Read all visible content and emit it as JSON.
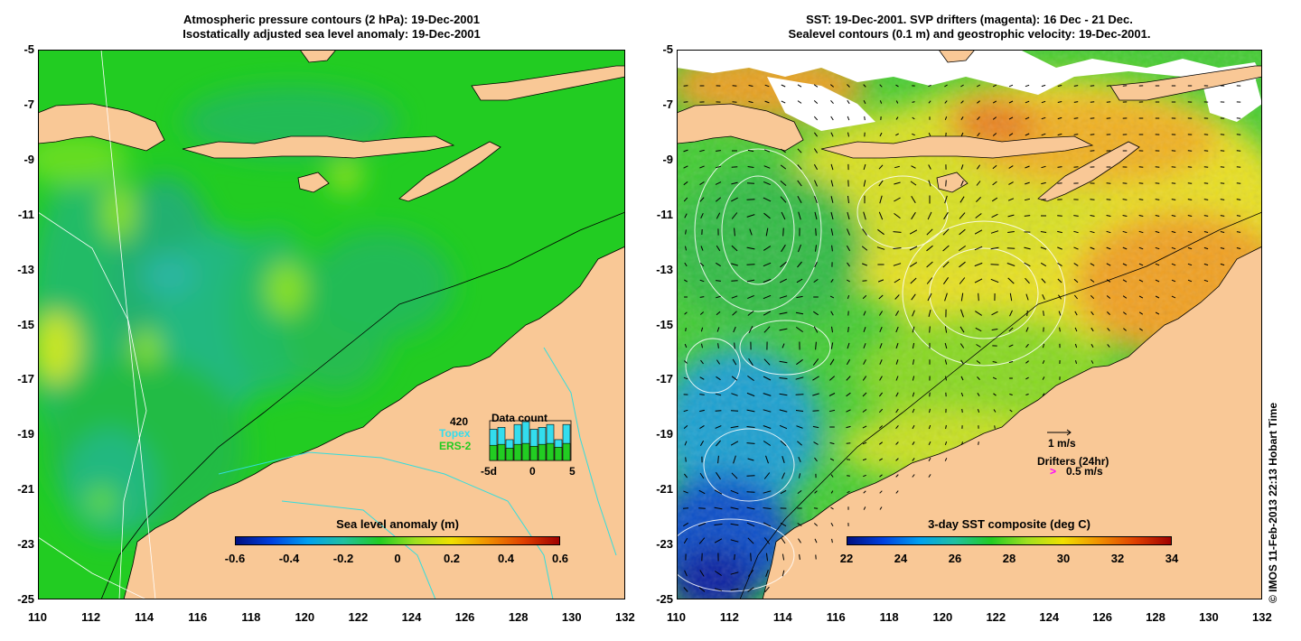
{
  "left_panel": {
    "title_line1": "Atmospheric pressure contours (2 hPa): 19-Dec-2001",
    "title_line2": "Isostatically adjusted sea level anomaly: 19-Dec-2001",
    "colorbar": {
      "title": "Sea level anomaly (m)",
      "tick_labels": [
        "-0.6",
        "-0.4",
        "-0.2",
        "0",
        "0.2",
        "0.4",
        "0.6"
      ],
      "min": -0.6,
      "max": 0.6
    },
    "data_count": {
      "title": "Data count",
      "max_label": "420",
      "topex_label": "Topex",
      "ers_label": "ERS-2",
      "axis_labels": [
        "-5d",
        "0",
        "5"
      ],
      "topex_colour": "#33ddee",
      "ers_colour": "#22cc22",
      "topex_counts": [
        330,
        350,
        220,
        380,
        410,
        330,
        350,
        380,
        220,
        380
      ],
      "ers_counts": [
        160,
        170,
        130,
        170,
        180,
        150,
        170,
        180,
        140,
        180
      ],
      "count_max": 420
    }
  },
  "right_panel": {
    "title_line1": "SST: 19-Dec-2001. SVP drifters (magenta): 16 Dec - 21 Dec.",
    "title_line2": "Sealevel contours (0.1 m) and geostrophic velocity: 19-Dec-2001.",
    "colorbar": {
      "title": "3-day SST composite (deg C)",
      "tick_labels": [
        "22",
        "24",
        "26",
        "28",
        "30",
        "32",
        "34"
      ],
      "min": 22,
      "max": 34
    },
    "legend": {
      "velocity_label": "1 m/s",
      "drifters_label": "Drifters (24hr)",
      "drifter_speed_label": "0.5 m/s",
      "drifter_marker": ">",
      "drifter_colour": "#ff00ff"
    }
  },
  "axes": {
    "x_labels": [
      "110",
      "112",
      "114",
      "116",
      "118",
      "120",
      "122",
      "124",
      "126",
      "128",
      "130",
      "132"
    ],
    "y_labels": [
      "-5",
      "-7",
      "-9",
      "-11",
      "-13",
      "-15",
      "-17",
      "-19",
      "-21",
      "-23",
      "-25"
    ],
    "lon_range": [
      110,
      132
    ],
    "lat_range": [
      -25,
      -5
    ]
  },
  "credit": "© IMOS 11-Feb-2013 22:13 Hobart Time",
  "colours": {
    "land": "#f9c896",
    "ocean_base_left": "#22cc22",
    "ocean_base_right": "#44cc33"
  }
}
